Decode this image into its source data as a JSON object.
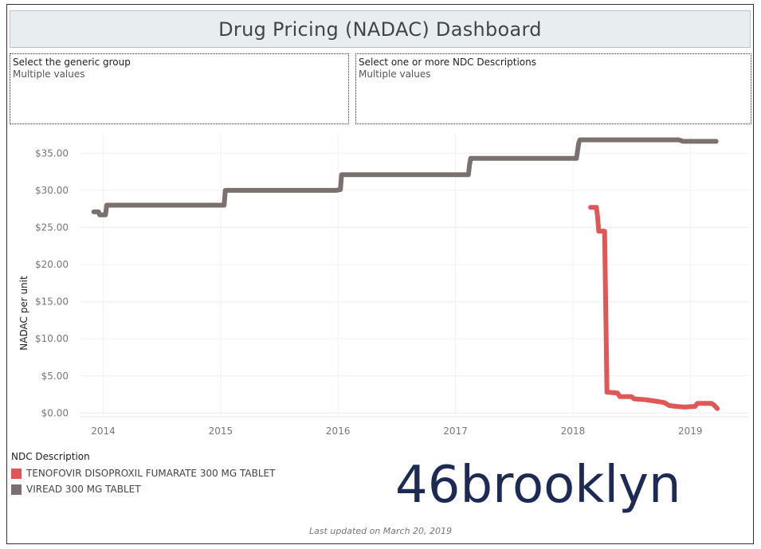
{
  "dashboard": {
    "title": "Drug Pricing (NADAC) Dashboard"
  },
  "filters": [
    {
      "label": "Select the generic group",
      "value": "Multiple values"
    },
    {
      "label": "Select one or more NDC Descriptions",
      "value": "Multiple values"
    }
  ],
  "legend": {
    "title": "NDC Description",
    "items": [
      {
        "label": "TENOFOVIR DISOPROXIL FUMARATE 300 MG TABLET",
        "color": "#e05757"
      },
      {
        "label": "VIREAD 300 MG TABLET",
        "color": "#7a716e"
      }
    ]
  },
  "logo": {
    "text": "46brooklyn"
  },
  "footer": {
    "text": "Last updated on March 20, 2019"
  },
  "chart_data": {
    "type": "line",
    "title": "",
    "xlabel": "",
    "ylabel": "NADAC per unit",
    "xlim": [
      2013.8,
      2019.5
    ],
    "ylim": [
      -0.5,
      37.5
    ],
    "x_ticks": [
      2014,
      2015,
      2016,
      2017,
      2018,
      2019
    ],
    "x_tick_labels": [
      "2014",
      "2015",
      "2016",
      "2017",
      "2018",
      "2019"
    ],
    "y_ticks": [
      0,
      5,
      10,
      15,
      20,
      25,
      30,
      35
    ],
    "y_tick_labels": [
      "$0.00",
      "$5.00",
      "$10.00",
      "$15.00",
      "$20.00",
      "$25.00",
      "$30.00",
      "$35.00"
    ],
    "grid": true,
    "series": [
      {
        "name": "VIREAD 300 MG TABLET",
        "color": "#7a716e",
        "x": [
          2013.92,
          2013.96,
          2013.97,
          2014.02,
          2014.03,
          2015.03,
          2015.04,
          2015.98,
          2016.02,
          2016.03,
          2017.11,
          2017.12,
          2017.13,
          2018.03,
          2018.05,
          2018.06,
          2018.9,
          2018.94,
          2019.22
        ],
        "values": [
          27.1,
          27.1,
          26.7,
          26.7,
          28.0,
          28.0,
          30.0,
          30.0,
          30.1,
          32.1,
          32.1,
          33.5,
          34.3,
          34.3,
          36.4,
          36.8,
          36.8,
          36.6,
          36.6
        ]
      },
      {
        "name": "TENOFOVIR DISOPROXIL FUMARATE 300 MG TABLET",
        "color": "#e05757",
        "x": [
          2018.15,
          2018.2,
          2018.21,
          2018.22,
          2018.27,
          2018.28,
          2018.29,
          2018.3,
          2018.38,
          2018.4,
          2018.5,
          2018.52,
          2018.62,
          2018.7,
          2018.78,
          2018.82,
          2018.88,
          2018.95,
          2019.04,
          2019.06,
          2019.18,
          2019.2,
          2019.23
        ],
        "values": [
          27.7,
          27.7,
          26.5,
          24.5,
          24.5,
          14.0,
          2.8,
          2.8,
          2.7,
          2.2,
          2.2,
          1.9,
          1.8,
          1.6,
          1.4,
          1.0,
          0.9,
          0.8,
          0.9,
          1.3,
          1.3,
          1.1,
          0.6
        ]
      }
    ]
  }
}
